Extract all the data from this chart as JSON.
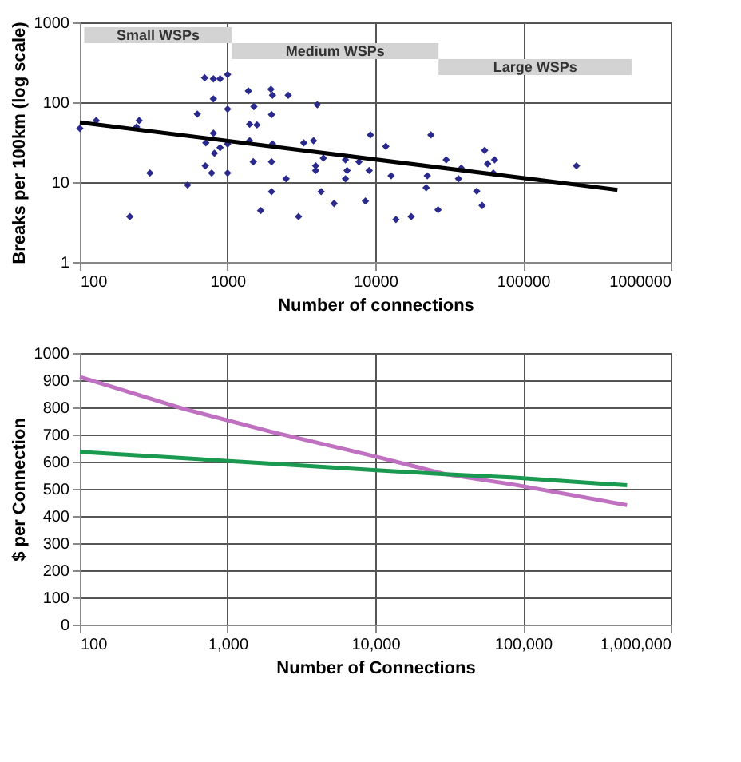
{
  "chart_data": [
    {
      "type": "scatter",
      "xlabel": "Number of connections",
      "ylabel": "Breaks per 100km (log scale)",
      "log": "xy",
      "grid": true,
      "xlim": [
        100,
        1000000
      ],
      "xticks": [
        100,
        1000,
        10000,
        100000,
        1000000
      ],
      "ylim": [
        1,
        1000
      ],
      "yticks": [
        1,
        10,
        100,
        1000
      ],
      "bands": [
        {
          "axis": "x",
          "from": 107,
          "to": 1070,
          "label": "Small WSPs",
          "color": "#d3d3d3"
        },
        {
          "axis": "x",
          "from": 1070,
          "to": 26800,
          "label": "Medium WSPs",
          "color": "#d3d3d3"
        },
        {
          "axis": "x",
          "from": 26800,
          "to": 546000,
          "label": "Large WSPs",
          "color": "#d3d3d3"
        }
      ],
      "series": [
        {
          "marker": "diamond",
          "color": "#2a2a8c",
          "x": [
            100,
            129,
            218,
            242,
            252,
            298,
            536,
            624,
            700,
            713,
            707,
            802,
            802,
            802,
            780,
            815,
            890,
            890,
            1000,
            1000,
            1000,
            1000,
            1384,
            1410,
            1410,
            1507,
            1492,
            1580,
            1675,
            1967,
            1985,
            2015,
            2015,
            1985,
            1985,
            2576,
            2490,
            3020,
            3280,
            3820,
            4050,
            3950,
            3950,
            4300,
            4450,
            5260,
            6280,
            6280,
            6440,
            7750,
            8570,
            9090,
            9270,
            11780,
            12800,
            13800,
            17500,
            22100,
            22500,
            23800,
            26600,
            30200,
            36600,
            38200,
            48600,
            52900,
            55000,
            57600,
            64200,
            63000,
            230000
          ],
          "values": [
            47,
            59,
            3.7,
            49,
            59,
            13,
            9.2,
            71,
            202,
            31,
            16,
            196,
            110,
            41,
            13,
            23,
            196,
            27,
            222,
            82,
            30,
            13,
            138,
            53,
            33,
            88,
            18,
            52,
            4.4,
            145,
            70,
            122,
            30,
            18,
            7.6,
            122,
            11,
            3.7,
            31,
            33,
            93,
            16,
            14,
            7.6,
            20,
            5.4,
            19,
            11,
            14,
            18,
            5.8,
            14,
            39,
            28,
            12,
            3.4,
            3.7,
            8.5,
            12,
            39,
            4.5,
            19,
            11,
            15,
            7.7,
            5.1,
            25,
            17,
            19,
            13,
            16
          ]
        },
        {
          "type": "line",
          "color": "#000000",
          "x": [
            100,
            436000
          ],
          "values": [
            56,
            8.0
          ]
        }
      ]
    },
    {
      "type": "line",
      "xlabel": "Number of Connections",
      "ylabel": "$ per Connection",
      "log": "x",
      "grid": true,
      "xlim": [
        100,
        1000000
      ],
      "xticks": [
        100,
        {
          "value": 1000,
          "label": "1,000"
        },
        {
          "value": 10000,
          "label": "10,000"
        },
        {
          "value": 100000,
          "label": "100,000"
        },
        {
          "value": 1000000,
          "label": "1,000,000"
        }
      ],
      "ylim": [
        0,
        1000
      ],
      "yticks": [
        0,
        100,
        200,
        300,
        400,
        500,
        600,
        700,
        800,
        900,
        1000
      ],
      "series": [
        {
          "color": "#c070c0",
          "x": [
            100,
            494,
            1980,
            9700,
            29800,
            87700,
            506000
          ],
          "values": [
            912,
            796,
            710,
            621,
            554,
            515,
            440
          ]
        },
        {
          "color": "#1a9a50",
          "x": [
            100,
            494,
            1980,
            9700,
            29800,
            87700,
            506000
          ],
          "values": [
            636,
            613,
            593,
            569,
            554,
            541,
            513
          ]
        }
      ]
    }
  ]
}
